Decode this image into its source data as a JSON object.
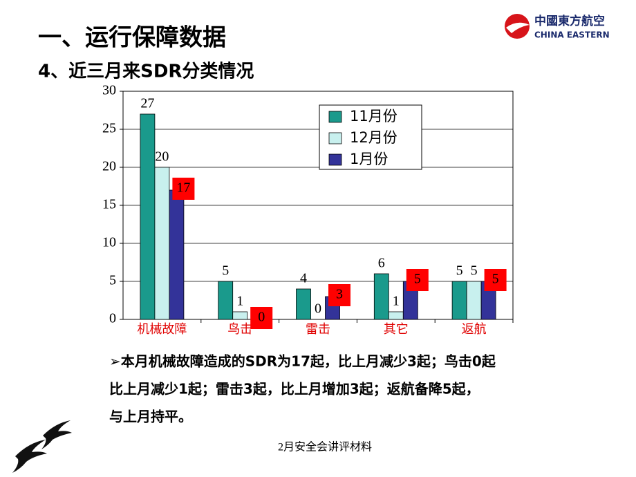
{
  "title": "一、运行保障数据",
  "subtitle": "4、近三月来SDR分类情况",
  "logo": {
    "name_cn": "中國東方航空",
    "name_en": "CHINA EASTERN"
  },
  "note_lines": [
    "➢本月机械故障造成的SDR为17起，比上月减少3起；鸟击0起",
    "比上月减少1起；雷击3起，比上月增加3起；返航备降5起，",
    "与上月持平。"
  ],
  "footer": "2月安全会讲评材料",
  "chart_data": {
    "type": "bar",
    "categories": [
      "机械故障",
      "鸟击",
      "雷击",
      "其它",
      "返航"
    ],
    "category_color": "#e00000",
    "series": [
      {
        "name": "11月份",
        "color": "#1a9a8c",
        "values": [
          27,
          5,
          4,
          6,
          5
        ]
      },
      {
        "name": "12月份",
        "color": "#c8f0ee",
        "values": [
          20,
          1,
          0,
          1,
          5
        ]
      },
      {
        "name": "1月份",
        "color": "#333399",
        "values": [
          17,
          0,
          3,
          5,
          5
        ],
        "label_background": "#ff0000"
      }
    ],
    "ylim": [
      0,
      30
    ],
    "yticks": [
      0,
      5,
      10,
      15,
      20,
      25,
      30
    ],
    "grid": true,
    "legend": "upper right"
  }
}
